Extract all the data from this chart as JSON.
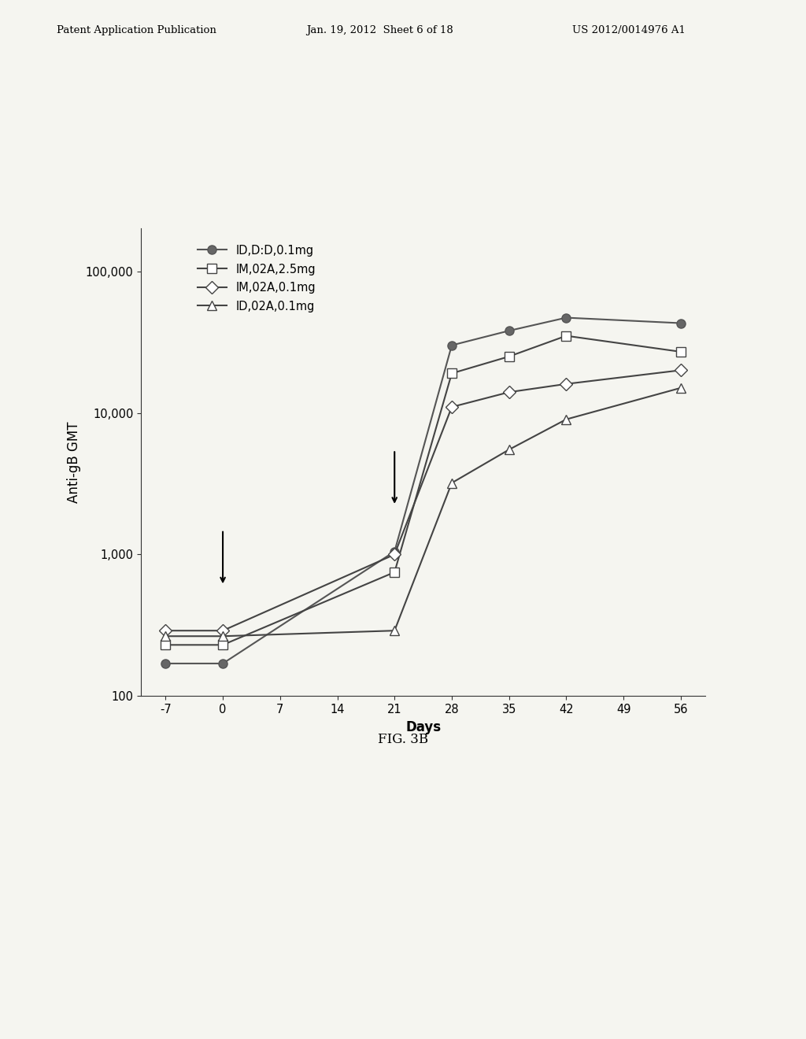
{
  "series": [
    {
      "label": "ID,D:D,0.1mg",
      "x": [
        -7,
        0,
        21,
        28,
        35,
        42,
        56
      ],
      "y": [
        170,
        170,
        1050,
        30000,
        38000,
        47000,
        43000
      ],
      "color": "#555555",
      "marker": "o",
      "markersize": 8,
      "markerfacecolor": "#666666",
      "linestyle": "-"
    },
    {
      "label": "IM,02A,2.5mg",
      "x": [
        -7,
        0,
        21,
        28,
        35,
        42,
        56
      ],
      "y": [
        230,
        230,
        750,
        19000,
        25000,
        35000,
        27000
      ],
      "color": "#444444",
      "marker": "s",
      "markersize": 8,
      "markerfacecolor": "#ffffff",
      "linestyle": "-"
    },
    {
      "label": "IM,02A,0.1mg",
      "x": [
        -7,
        0,
        21,
        28,
        35,
        42,
        56
      ],
      "y": [
        290,
        290,
        1000,
        11000,
        14000,
        16000,
        20000
      ],
      "color": "#444444",
      "marker": "D",
      "markersize": 8,
      "markerfacecolor": "#ffffff",
      "linestyle": "-"
    },
    {
      "label": "ID,02A,0.1mg",
      "x": [
        -7,
        0,
        21,
        28,
        35,
        42,
        56
      ],
      "y": [
        265,
        265,
        290,
        3200,
        5500,
        9000,
        15000
      ],
      "color": "#444444",
      "marker": "^",
      "markersize": 8,
      "markerfacecolor": "#ffffff",
      "linestyle": "-"
    }
  ],
  "xlabel": "Days",
  "ylabel": "Anti-gB GMT",
  "fig_caption": "FIG. 3B",
  "xlim": [
    -10,
    59
  ],
  "ylim_log": [
    100,
    200000
  ],
  "xticks": [
    -7,
    0,
    7,
    14,
    21,
    28,
    35,
    42,
    49,
    56
  ],
  "yticks_log": [
    100,
    1000,
    10000,
    100000
  ],
  "ytick_labels": [
    "100",
    "1,000",
    "10,000",
    "100,000"
  ],
  "header_left": "Patent Application Publication",
  "header_date": "Jan. 19, 2012  Sheet 6 of 18",
  "header_right": "US 2012/0014976 A1",
  "bg_color": "#f5f5f0",
  "line_color": "#333333",
  "legend_fontsize": 10.5,
  "axis_fontsize": 12,
  "tick_fontsize": 10.5
}
